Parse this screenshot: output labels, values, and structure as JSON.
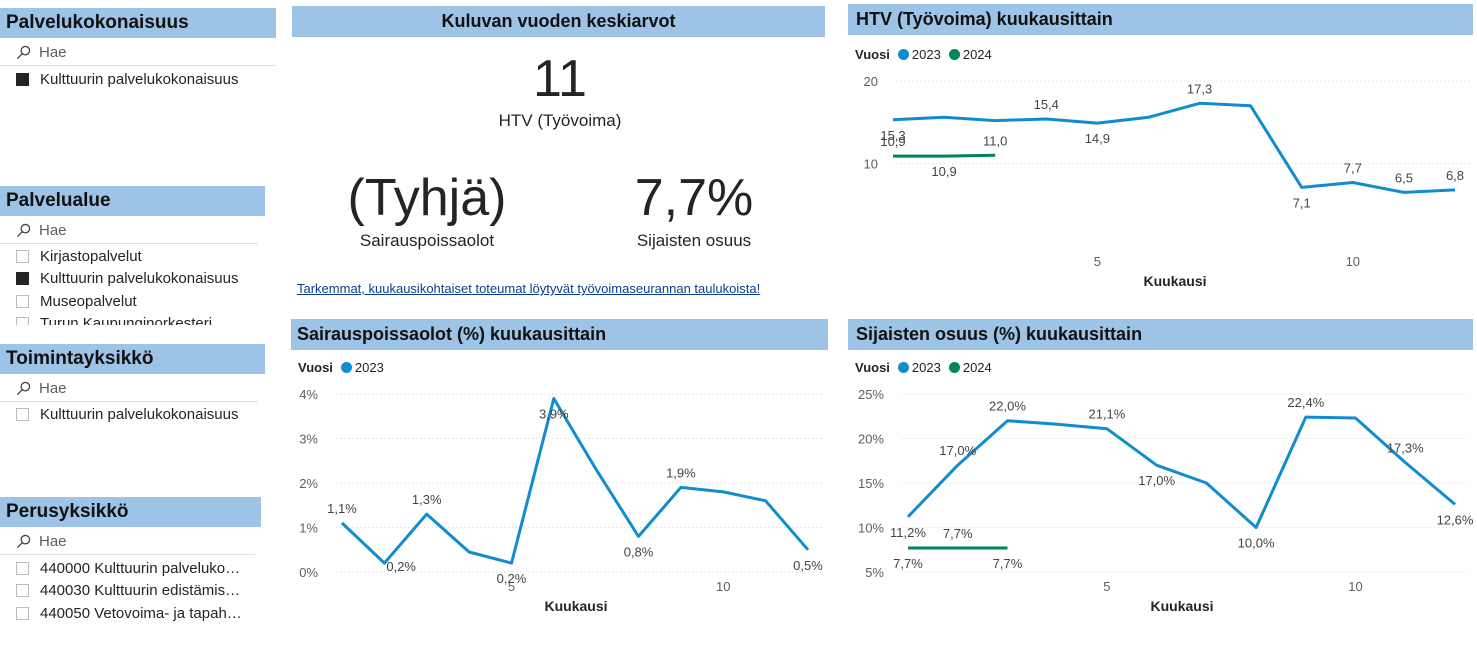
{
  "slicers": [
    {
      "title": "Palvelukokonaisuus",
      "search_placeholder": "Hae",
      "items": [
        {
          "label": "Kulttuurin palvelukokonaisuus",
          "checked": true
        }
      ]
    },
    {
      "title": "Palvelualue",
      "search_placeholder": "Hae",
      "items": [
        {
          "label": "Kirjastopalvelut",
          "checked": false
        },
        {
          "label": "Kulttuurin palvelukokonaisuus",
          "checked": true
        },
        {
          "label": "Museopalvelut",
          "checked": false
        },
        {
          "label": "Turun Kaupunginorkesteri",
          "checked": false
        }
      ]
    },
    {
      "title": "Toimintayksikkö",
      "search_placeholder": "Hae",
      "items": [
        {
          "label": "Kulttuurin palvelukokonaisuus",
          "checked": false
        }
      ]
    },
    {
      "title": "Perusyksikkö",
      "search_placeholder": "Hae",
      "items": [
        {
          "label": "440000 Kulttuurin palveluko…",
          "checked": false
        },
        {
          "label": "440030 Kulttuurin edistämis…",
          "checked": false
        },
        {
          "label": "440050 Vetovoima- ja tapah…",
          "checked": false
        }
      ]
    }
  ],
  "kpi": {
    "title": "Kuluvan vuoden keskiarvot",
    "htv_value": "11",
    "htv_label": "HTV (Työvoima)",
    "sick_value": "(Tyhjä)",
    "sick_label": "Sairauspoissaolot",
    "sub_value": "7,7%",
    "sub_label": "Sijaisten osuus",
    "note": "Tarkemmat, kuukausikohtaiset toteumat löytyvät työvoimaseurannan taulukoista!"
  },
  "colors": {
    "series_2023": "#118dcf",
    "series_2024": "#00855f",
    "header_bg": "#9dc3e6",
    "grid": "#d9d9d9"
  },
  "chart_data": [
    {
      "id": "htv",
      "type": "line",
      "title": "HTV (Työvoima) kuukausittain",
      "legend_title": "Vuosi",
      "legend": [
        "2023",
        "2024"
      ],
      "xlabel": "Kuukausi",
      "ylabel": "",
      "xlim": [
        1,
        12
      ],
      "ylim": [
        0,
        20
      ],
      "x_ticks": [
        5,
        10
      ],
      "x_tick_labels": [
        "5",
        "10"
      ],
      "y_ticks": [
        10,
        20
      ],
      "y_tick_labels": [
        "10",
        "20"
      ],
      "series": [
        {
          "name": "2023",
          "x": [
            1,
            2,
            3,
            4,
            5,
            6,
            7,
            8,
            9,
            10,
            11,
            12
          ],
          "y": [
            15.3,
            15.6,
            15.2,
            15.4,
            14.9,
            15.6,
            17.3,
            17.0,
            7.1,
            7.7,
            6.5,
            6.8
          ],
          "labels": [
            "15,3",
            "",
            "",
            "15,4",
            "14,9",
            "",
            "17,3",
            "",
            "7,1",
            "7,7",
            "6,5",
            "6,8"
          ],
          "label_pos": [
            "below",
            "",
            "",
            "above",
            "below",
            "",
            "above",
            "",
            "below",
            "above",
            "above",
            "above"
          ]
        },
        {
          "name": "2024",
          "x": [
            1,
            2,
            3
          ],
          "y": [
            10.9,
            10.9,
            11.0
          ],
          "labels": [
            "10,9",
            "10,9",
            "11,0"
          ],
          "label_pos": [
            "above",
            "below",
            "above"
          ]
        }
      ]
    },
    {
      "id": "sick",
      "type": "line",
      "title": "Sairauspoissaolot (%) kuukausittain",
      "legend_title": "Vuosi",
      "legend": [
        "2023"
      ],
      "xlabel": "Kuukausi",
      "ylabel": "",
      "xlim": [
        1,
        12
      ],
      "ylim": [
        0,
        4
      ],
      "x_ticks": [
        5,
        10
      ],
      "x_tick_labels": [
        "5",
        "10"
      ],
      "y_ticks": [
        0,
        1,
        2,
        3,
        4
      ],
      "y_tick_labels": [
        "0%",
        "1%",
        "2%",
        "3%",
        "4%"
      ],
      "series": [
        {
          "name": "2023",
          "x": [
            1,
            2,
            3,
            4,
            5,
            6,
            7,
            8,
            9,
            10,
            11,
            12
          ],
          "y": [
            1.1,
            0.2,
            1.3,
            0.45,
            0.2,
            3.9,
            2.3,
            0.8,
            1.9,
            1.8,
            1.6,
            0.5
          ],
          "labels": [
            "1,1%",
            "0,2%",
            "1,3%",
            "",
            "0,2%",
            "3,9%",
            "",
            "0,8%",
            "1,9%",
            "",
            "",
            "0,5%"
          ],
          "label_pos": [
            "above",
            "right",
            "above",
            "",
            "below",
            "below",
            "",
            "below",
            "above",
            "",
            "",
            "below"
          ]
        }
      ]
    },
    {
      "id": "sub",
      "type": "line",
      "title": "Sijaisten osuus (%) kuukausittain",
      "legend_title": "Vuosi",
      "legend": [
        "2023",
        "2024"
      ],
      "xlabel": "Kuukausi",
      "ylabel": "",
      "xlim": [
        1,
        12
      ],
      "ylim": [
        5,
        25
      ],
      "x_ticks": [
        5,
        10
      ],
      "x_tick_labels": [
        "5",
        "10"
      ],
      "y_ticks": [
        5,
        10,
        15,
        20,
        25
      ],
      "y_tick_labels": [
        "5%",
        "10%",
        "15%",
        "20%",
        "25%"
      ],
      "series": [
        {
          "name": "2023",
          "x": [
            1,
            2,
            3,
            4,
            5,
            6,
            7,
            8,
            9,
            10,
            11,
            12
          ],
          "y": [
            11.2,
            17.0,
            22.0,
            21.6,
            21.1,
            17.0,
            15.0,
            10.0,
            22.4,
            22.3,
            17.3,
            12.6
          ],
          "labels": [
            "11,2%",
            "17,0%",
            "22,0%",
            "",
            "21,1%",
            "17,0%",
            "",
            "10,0%",
            "22,4%",
            "",
            "17,3%",
            "12,6%"
          ],
          "label_pos": [
            "below",
            "above",
            "above",
            "",
            "above",
            "below",
            "",
            "below",
            "above",
            "",
            "above",
            "below"
          ]
        },
        {
          "name": "2024",
          "x": [
            1,
            2,
            3
          ],
          "y": [
            7.7,
            7.7,
            7.7
          ],
          "labels": [
            "7,7%",
            "7,7%",
            "7,7%"
          ],
          "label_pos": [
            "below",
            "above",
            "below"
          ]
        }
      ]
    }
  ]
}
